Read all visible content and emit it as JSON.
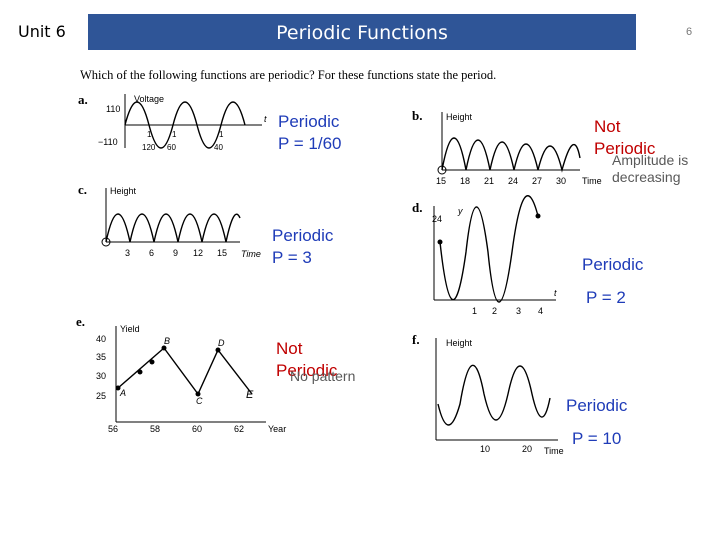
{
  "header": {
    "unit": "Unit 6",
    "title": "Periodic Functions",
    "page_number": "6"
  },
  "question": "Which of the following functions are periodic? For these functions state the period.",
  "problems": {
    "a": {
      "label": "a.",
      "ylabel": "Voltage",
      "xlabel": "t",
      "y_ticks": [
        "110",
        "−110"
      ],
      "x_ticks": [
        "1",
        "1",
        "1"
      ],
      "x_tick_denoms": [
        "120",
        "60",
        "40"
      ],
      "answer_line1": "Periodic",
      "answer_line2": "P = 1/60"
    },
    "b": {
      "label": "b.",
      "ylabel": "Height",
      "xlabel": "Time",
      "x_ticks": [
        "15",
        "18",
        "21",
        "24",
        "27",
        "30"
      ],
      "answer_line1": "Not",
      "answer_line2": "Periodic",
      "note_line1": "Amplitude is",
      "note_line2": "decreasing"
    },
    "c": {
      "label": "c.",
      "ylabel": "Height",
      "xlabel": "Time",
      "x_ticks": [
        "3",
        "6",
        "9",
        "12",
        "15"
      ],
      "answer_line1": "Periodic",
      "answer_line2": "P = 3"
    },
    "d": {
      "label": "d.",
      "ylabel": "y",
      "xlabel": "t",
      "y_ticks": [
        "24"
      ],
      "x_ticks": [
        "1",
        "2",
        "3",
        "4"
      ],
      "answer_line1": "Periodic",
      "answer_line2": "P = 2"
    },
    "e": {
      "label": "e.",
      "ylabel": "Yield",
      "xlabel": "Year",
      "y_ticks": [
        "40",
        "35",
        "30",
        "25"
      ],
      "x_ticks": [
        "56",
        "58",
        "60",
        "62"
      ],
      "point_labels": [
        "A",
        "B",
        "C",
        "D",
        "E"
      ],
      "answer_line1": "Not",
      "answer_line2": "Periodic",
      "note": "No pattern"
    },
    "f": {
      "label": "f.",
      "ylabel": "Height",
      "xlabel": "Time",
      "x_ticks": [
        "10",
        "20"
      ],
      "answer_line1": "Periodic",
      "answer_line2": "P = 10"
    }
  },
  "colors": {
    "banner": "#2f5597",
    "answer_red": "#c00000",
    "answer_blue": "#1f3cb8",
    "note_gray": "#595959"
  }
}
